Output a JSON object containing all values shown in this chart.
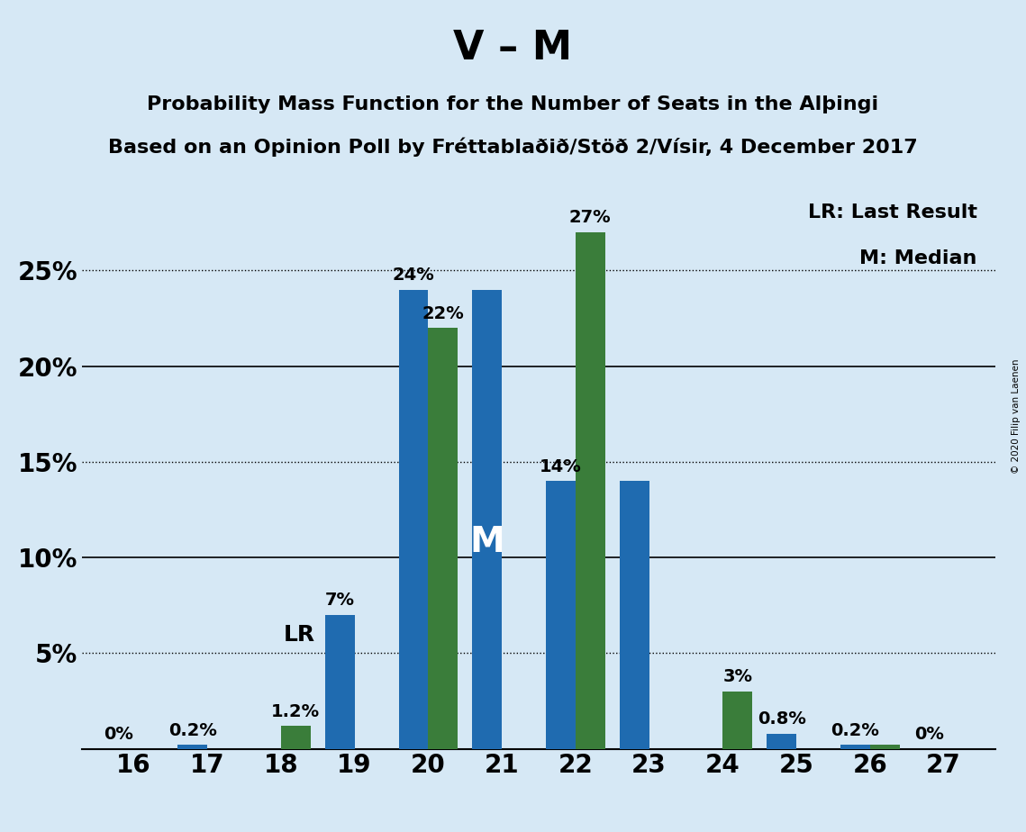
{
  "title": "V – M",
  "subtitle1": "Probability Mass Function for the Number of Seats in the Alþingi",
  "subtitle2": "Based on an Opinion Poll by Fréttablaðið/Stöð 2/Vísir, 4 December 2017",
  "copyright": "© 2020 Filip van Laenen",
  "seats": [
    16,
    17,
    18,
    19,
    20,
    21,
    22,
    23,
    24,
    25,
    26,
    27
  ],
  "blue_values": [
    0.0,
    0.2,
    0.0,
    7.0,
    24.0,
    24.0,
    14.0,
    14.0,
    0.0,
    0.8,
    0.2,
    0.0
  ],
  "green_values": [
    0.0,
    0.0,
    1.2,
    0.0,
    22.0,
    0.0,
    27.0,
    0.0,
    3.0,
    0.0,
    0.2,
    0.0
  ],
  "blue_labels": [
    "0%",
    "0.2%",
    "",
    "7%",
    "24%",
    "",
    "14%",
    "",
    "",
    "0.8%",
    "0.2%",
    "0%"
  ],
  "green_labels": [
    "",
    "",
    "1.2%",
    "",
    "22%",
    "",
    "27%",
    "",
    "3%",
    "",
    "",
    ""
  ],
  "bar_color_blue": "#1F6BB0",
  "bar_color_green": "#3A7D3A",
  "background_color": "#D6E8F5",
  "lr_seat": 18,
  "lr_label": "LR",
  "median_seat": 21,
  "median_label": "M",
  "ylim": [
    0,
    30
  ],
  "solid_yticks": [
    10,
    20
  ],
  "dotted_yticks": [
    5,
    15,
    25
  ],
  "legend_lr": "LR: Last Result",
  "legend_m": "M: Median",
  "title_fontsize": 32,
  "subtitle_fontsize": 16,
  "bar_width": 0.4
}
